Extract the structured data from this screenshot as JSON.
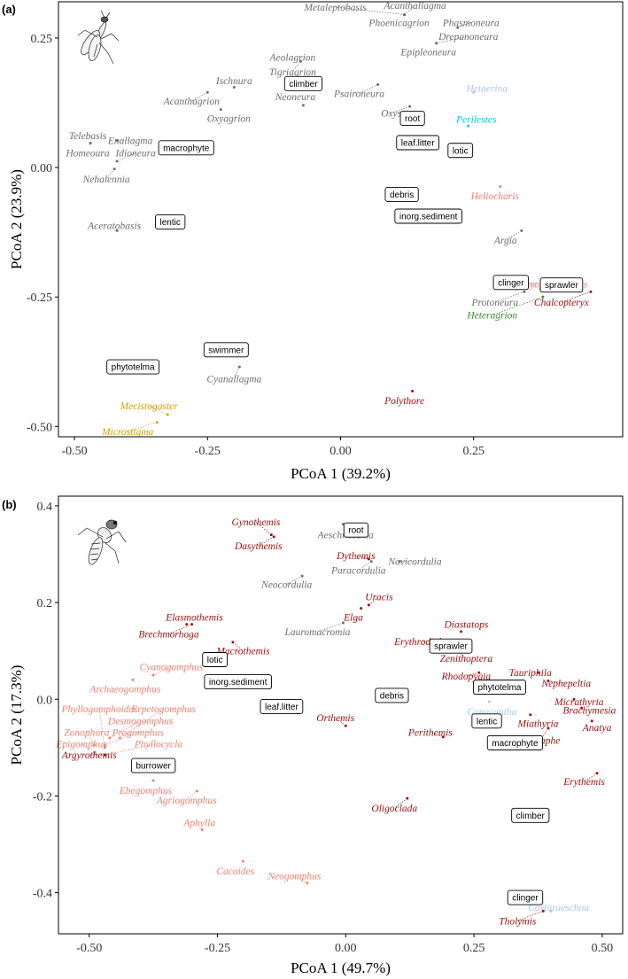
{
  "chart_data": [
    {
      "type": "scatter",
      "panel": "(a)",
      "xlabel": "PCoA 1 (39.2%)",
      "ylabel": "PCoA 2 (23.9%)",
      "xlim": [
        -0.53,
        0.53
      ],
      "ylim": [
        -0.52,
        0.32
      ],
      "xticks": [
        -0.5,
        -0.25,
        0.0,
        0.25
      ],
      "xtick_labels": [
        "-0.50",
        "-0.25",
        "0.00",
        "0.25"
      ],
      "yticks": [
        -0.5,
        -0.25,
        0.0,
        0.25
      ],
      "ytick_labels": [
        "-0.50",
        "-0.25",
        "0.00",
        "0.25"
      ],
      "taxa": [
        {
          "name": "Metaleptobasis",
          "x": 0.12,
          "y": 0.295,
          "label": [
            -0.01,
            0.31
          ],
          "color": "#6e6e6e"
        },
        {
          "name": "Acanthallagma",
          "x": 0.12,
          "y": 0.295,
          "label": [
            0.14,
            0.313
          ],
          "color": "#6e6e6e"
        },
        {
          "name": "Phasmoneura",
          "x": 0.22,
          "y": 0.27,
          "label": [
            0.245,
            0.28
          ],
          "color": "#6e6e6e"
        },
        {
          "name": "Phoenicagrion",
          "x": 0.12,
          "y": 0.295,
          "label": [
            0.11,
            0.28
          ],
          "color": "#6e6e6e"
        },
        {
          "name": "Drepanoneura",
          "x": 0.18,
          "y": 0.24,
          "label": [
            0.24,
            0.253
          ],
          "color": "#6e6e6e"
        },
        {
          "name": "Epipleoneura",
          "x": 0.18,
          "y": 0.24,
          "label": [
            0.165,
            0.223
          ],
          "color": "#6e6e6e"
        },
        {
          "name": "Aeolagrion",
          "x": -0.075,
          "y": 0.205,
          "label": [
            -0.09,
            0.213
          ],
          "color": "#6e6e6e"
        },
        {
          "name": "Tigriagrion",
          "x": -0.075,
          "y": 0.205,
          "label": [
            -0.09,
            0.185
          ],
          "color": "#6e6e6e"
        },
        {
          "name": "Ischnura",
          "x": -0.2,
          "y": 0.155,
          "label": [
            -0.2,
            0.168
          ],
          "color": "#6e6e6e"
        },
        {
          "name": "Acanthagrion",
          "x": -0.25,
          "y": 0.145,
          "label": [
            -0.28,
            0.128
          ],
          "color": "#6e6e6e"
        },
        {
          "name": "Oxyagrion",
          "x": -0.225,
          "y": 0.112,
          "label": [
            -0.21,
            0.095
          ],
          "color": "#6e6e6e"
        },
        {
          "name": "Neoneura",
          "x": -0.07,
          "y": 0.12,
          "label": [
            -0.085,
            0.137
          ],
          "color": "#6e6e6e"
        },
        {
          "name": "Psaironeura",
          "x": 0.07,
          "y": 0.16,
          "label": [
            0.035,
            0.143
          ],
          "color": "#6e6e6e"
        },
        {
          "name": "Oxys",
          "x": 0.13,
          "y": 0.118,
          "label": [
            0.095,
            0.105
          ],
          "color": "#6e6e6e"
        },
        {
          "name": "Hetaerina",
          "x": 0.25,
          "y": 0.145,
          "label": [
            0.275,
            0.153
          ],
          "color": "#aac8ea"
        },
        {
          "name": "Perilestes",
          "x": 0.24,
          "y": 0.08,
          "label": [
            0.255,
            0.093
          ],
          "color": "#00c8e0"
        },
        {
          "name": "Telebasis",
          "x": -0.47,
          "y": 0.047,
          "label": [
            -0.475,
            0.062
          ],
          "color": "#6e6e6e"
        },
        {
          "name": "Enallagma",
          "x": -0.42,
          "y": 0.052,
          "label": [
            -0.395,
            0.052
          ],
          "color": "#6e6e6e"
        },
        {
          "name": "Homeoura",
          "x": -0.47,
          "y": 0.047,
          "label": [
            -0.475,
            0.028
          ],
          "color": "#6e6e6e"
        },
        {
          "name": "Idioneura",
          "x": -0.42,
          "y": 0.012,
          "label": [
            -0.385,
            0.028
          ],
          "color": "#6e6e6e"
        },
        {
          "name": "Nehalennia",
          "x": -0.425,
          "y": -0.003,
          "label": [
            -0.44,
            -0.022
          ],
          "color": "#6e6e6e"
        },
        {
          "name": "Heliocharis",
          "x": 0.3,
          "y": -0.037,
          "label": [
            0.29,
            -0.055
          ],
          "color": "#f08070"
        },
        {
          "name": "Aceratobasis",
          "x": -0.42,
          "y": -0.122,
          "label": [
            -0.425,
            -0.112
          ],
          "color": "#6e6e6e"
        },
        {
          "name": "Argia",
          "x": 0.34,
          "y": -0.122,
          "label": [
            0.31,
            -0.14
          ],
          "color": "#6e6e6e"
        },
        {
          "name": "Mnesarete",
          "x": 0.33,
          "y": -0.235,
          "label": [
            0.33,
            -0.225
          ],
          "color": "#aac8ea"
        },
        {
          "name": "Bryoplatycterias",
          "x": 0.4,
          "y": -0.225,
          "label": [
            0.4,
            -0.225
          ],
          "color": "#f08070"
        },
        {
          "name": "Protoneura",
          "x": 0.345,
          "y": -0.24,
          "label": [
            0.29,
            -0.26
          ],
          "color": "#6e6e6e"
        },
        {
          "name": "Chalcopteryx",
          "x": 0.47,
          "y": -0.24,
          "label": [
            0.415,
            -0.26
          ],
          "color": "#a01010"
        },
        {
          "name": "Heteragrion",
          "x": 0.38,
          "y": -0.25,
          "label": [
            0.285,
            -0.285
          ],
          "color": "#3a8a2a"
        },
        {
          "name": "Cyanallagma",
          "x": -0.19,
          "y": -0.385,
          "label": [
            -0.2,
            -0.408
          ],
          "color": "#6e6e6e"
        },
        {
          "name": "Polythore",
          "x": 0.135,
          "y": -0.432,
          "label": [
            0.12,
            -0.45
          ],
          "color": "#a01010"
        },
        {
          "name": "Mecistogaster",
          "x": -0.325,
          "y": -0.477,
          "label": [
            -0.36,
            -0.46
          ],
          "color": "#d4a000"
        },
        {
          "name": "Microstigma",
          "x": -0.345,
          "y": -0.492,
          "label": [
            -0.4,
            -0.51
          ],
          "color": "#d4a000"
        }
      ],
      "habitats": [
        {
          "label": "climber",
          "x": -0.07,
          "y": 0.162
        },
        {
          "label": "root",
          "x": 0.135,
          "y": 0.095
        },
        {
          "label": "leaf.litter",
          "x": 0.145,
          "y": 0.048
        },
        {
          "label": "lotic",
          "x": 0.225,
          "y": 0.033
        },
        {
          "label": "macrophyte",
          "x": -0.29,
          "y": 0.038
        },
        {
          "label": "debris",
          "x": 0.115,
          "y": -0.052
        },
        {
          "label": "inorg.sediment",
          "x": 0.165,
          "y": -0.094
        },
        {
          "label": "lentic",
          "x": -0.32,
          "y": -0.105
        },
        {
          "label": "clinger",
          "x": 0.32,
          "y": -0.222
        },
        {
          "label": "sprawler",
          "x": 0.415,
          "y": -0.227
        },
        {
          "label": "swimmer",
          "x": -0.215,
          "y": -0.352
        },
        {
          "label": "phytotelma",
          "x": -0.39,
          "y": -0.385
        }
      ]
    },
    {
      "type": "scatter",
      "panel": "(b)",
      "xlabel": "PCoA 1 (49.7%)",
      "ylabel": "PCoA 2 (17.3%)",
      "xlim": [
        -0.56,
        0.54
      ],
      "ylim": [
        -0.485,
        0.42
      ],
      "xticks": [
        -0.5,
        -0.25,
        0.0,
        0.25,
        0.5
      ],
      "xtick_labels": [
        "-0.50",
        "-0.25",
        "0.00",
        "0.25",
        "0.50"
      ],
      "yticks": [
        -0.4,
        -0.2,
        0.0,
        0.2,
        0.4
      ],
      "ytick_labels": [
        "-0.4",
        "-0.2",
        "0.0",
        "0.2",
        "0.4"
      ],
      "taxa": [
        {
          "name": "Gynothemis",
          "x": -0.145,
          "y": 0.34,
          "label": [
            -0.175,
            0.367
          ],
          "color": "#a01010"
        },
        {
          "name": "Dasythemis",
          "x": -0.14,
          "y": 0.336,
          "label": [
            -0.17,
            0.317
          ],
          "color": "#a01010"
        },
        {
          "name": "Aeschnosoma",
          "x": -0.005,
          "y": 0.362,
          "label": [
            0.0,
            0.34
          ],
          "color": "#6e6e6e"
        },
        {
          "name": "Dythemis",
          "x": 0.045,
          "y": 0.29,
          "label": [
            0.02,
            0.297
          ],
          "color": "#a01010"
        },
        {
          "name": "Navicordulia",
          "x": 0.105,
          "y": 0.285,
          "label": [
            0.135,
            0.285
          ],
          "color": "#6e6e6e"
        },
        {
          "name": "Paracordulia",
          "x": 0.05,
          "y": 0.285,
          "label": [
            0.025,
            0.267
          ],
          "color": "#6e6e6e"
        },
        {
          "name": "Neocordulia",
          "x": -0.085,
          "y": 0.255,
          "label": [
            -0.115,
            0.238
          ],
          "color": "#6e6e6e"
        },
        {
          "name": "Uracis",
          "x": 0.045,
          "y": 0.195,
          "label": [
            0.065,
            0.212
          ],
          "color": "#a01010"
        },
        {
          "name": "Elga",
          "x": 0.03,
          "y": 0.188,
          "label": [
            0.015,
            0.17
          ],
          "color": "#a01010"
        },
        {
          "name": "Lauromacromia",
          "x": -0.005,
          "y": 0.158,
          "label": [
            -0.055,
            0.14
          ],
          "color": "#6e6e6e"
        },
        {
          "name": "Elasmothemis",
          "x": -0.31,
          "y": 0.155,
          "label": [
            -0.295,
            0.17
          ],
          "color": "#a01010"
        },
        {
          "name": "Brechmorhoga",
          "x": -0.3,
          "y": 0.155,
          "label": [
            -0.345,
            0.135
          ],
          "color": "#a01010"
        },
        {
          "name": "Macrothemis",
          "x": -0.22,
          "y": 0.118,
          "label": [
            -0.2,
            0.1
          ],
          "color": "#a01010"
        },
        {
          "name": "Diastatops",
          "x": 0.225,
          "y": 0.14,
          "label": [
            0.235,
            0.155
          ],
          "color": "#a01010"
        },
        {
          "name": "Erythrodiplax",
          "x": 0.2,
          "y": 0.12,
          "label": [
            0.15,
            0.12
          ],
          "color": "#a01010"
        },
        {
          "name": "Zenithoptera",
          "x": 0.215,
          "y": 0.1,
          "label": [
            0.235,
            0.085
          ],
          "color": "#a01010"
        },
        {
          "name": "Rhodopygia",
          "x": 0.26,
          "y": 0.055,
          "label": [
            0.235,
            0.048
          ],
          "color": "#a01010"
        },
        {
          "name": "Tauriphila",
          "x": 0.375,
          "y": 0.055,
          "label": [
            0.36,
            0.055
          ],
          "color": "#a01010"
        },
        {
          "name": "Nephepeltia",
          "x": 0.395,
          "y": 0.038,
          "label": [
            0.43,
            0.033
          ],
          "color": "#a01010"
        },
        {
          "name": "Micrathyria",
          "x": 0.445,
          "y": 0.0,
          "label": [
            0.455,
            -0.005
          ],
          "color": "#a01010"
        },
        {
          "name": "Brachymesia",
          "x": 0.46,
          "y": -0.018,
          "label": [
            0.475,
            -0.022
          ],
          "color": "#a01010"
        },
        {
          "name": "Miathyria",
          "x": 0.36,
          "y": -0.032,
          "label": [
            0.375,
            -0.05
          ],
          "color": "#a01010"
        },
        {
          "name": "Anatya",
          "x": 0.48,
          "y": -0.045,
          "label": [
            0.49,
            -0.058
          ],
          "color": "#a01010"
        },
        {
          "name": "Gynacantha",
          "x": 0.28,
          "y": -0.005,
          "label": [
            0.285,
            -0.025
          ],
          "color": "#aac8ea"
        },
        {
          "name": "Idiataphe",
          "x": 0.395,
          "y": -0.06,
          "label": [
            0.38,
            -0.085
          ],
          "color": "#a01010"
        },
        {
          "name": "Erythemis",
          "x": 0.49,
          "y": -0.153,
          "label": [
            0.465,
            -0.17
          ],
          "color": "#a01010"
        },
        {
          "name": "Orthemis",
          "x": 0.0,
          "y": -0.055,
          "label": [
            -0.02,
            -0.038
          ],
          "color": "#a01010"
        },
        {
          "name": "Perithemis",
          "x": 0.19,
          "y": -0.078,
          "label": [
            0.165,
            -0.068
          ],
          "color": "#a01010"
        },
        {
          "name": "Oligoclada",
          "x": 0.12,
          "y": -0.205,
          "label": [
            0.095,
            -0.225
          ],
          "color": "#a01010"
        },
        {
          "name": "Cyanogomphus",
          "x": -0.375,
          "y": 0.05,
          "label": [
            -0.34,
            0.067
          ],
          "color": "#f08070"
        },
        {
          "name": "Archaeogomphus",
          "x": -0.415,
          "y": 0.04,
          "label": [
            -0.43,
            0.022
          ],
          "color": "#f08070"
        },
        {
          "name": "Phyllogomphoides",
          "x": -0.47,
          "y": -0.1,
          "label": [
            -0.48,
            -0.02
          ],
          "color": "#f08070"
        },
        {
          "name": "Erpetogomphus",
          "x": -0.44,
          "y": -0.08,
          "label": [
            -0.355,
            -0.02
          ],
          "color": "#f08070"
        },
        {
          "name": "Desmogomphus",
          "x": -0.46,
          "y": -0.08,
          "label": [
            -0.4,
            -0.044
          ],
          "color": "#f08070"
        },
        {
          "name": "Zonophora",
          "x": -0.49,
          "y": -0.095,
          "label": [
            -0.505,
            -0.068
          ],
          "color": "#f08070"
        },
        {
          "name": "Progomphus",
          "x": -0.47,
          "y": -0.095,
          "label": [
            -0.405,
            -0.068
          ],
          "color": "#f08070"
        },
        {
          "name": "Epigomphus",
          "x": -0.49,
          "y": -0.11,
          "label": [
            -0.515,
            -0.092
          ],
          "color": "#f08070"
        },
        {
          "name": "Phyllocycla",
          "x": -0.47,
          "y": -0.115,
          "label": [
            -0.365,
            -0.092
          ],
          "color": "#f08070"
        },
        {
          "name": "Argyrothemis",
          "x": -0.47,
          "y": -0.115,
          "label": [
            -0.5,
            -0.115
          ],
          "color": "#a01010"
        },
        {
          "name": "Ebegomphus",
          "x": -0.375,
          "y": -0.168,
          "label": [
            -0.39,
            -0.188
          ],
          "color": "#f08070"
        },
        {
          "name": "Agriogomphus",
          "x": -0.29,
          "y": -0.19,
          "label": [
            -0.31,
            -0.208
          ],
          "color": "#f08070"
        },
        {
          "name": "Aphylla",
          "x": -0.28,
          "y": -0.27,
          "label": [
            -0.285,
            -0.255
          ],
          "color": "#f08070"
        },
        {
          "name": "Cacoides",
          "x": -0.2,
          "y": -0.335,
          "label": [
            -0.215,
            -0.355
          ],
          "color": "#f08070"
        },
        {
          "name": "Neogomphus",
          "x": -0.075,
          "y": -0.38,
          "label": [
            -0.1,
            -0.365
          ],
          "color": "#f08070"
        },
        {
          "name": "Castoraeschna",
          "x": 0.4,
          "y": -0.438,
          "label": [
            0.415,
            -0.43
          ],
          "color": "#aac8ea"
        },
        {
          "name": "Tholymis",
          "x": 0.385,
          "y": -0.438,
          "label": [
            0.335,
            -0.458
          ],
          "color": "#a01010"
        }
      ],
      "habitats": [
        {
          "label": "root",
          "x": 0.02,
          "y": 0.35
        },
        {
          "label": "sprawler",
          "x": 0.205,
          "y": 0.11
        },
        {
          "label": "lotic",
          "x": -0.255,
          "y": 0.082
        },
        {
          "label": "inorg.sediment",
          "x": -0.21,
          "y": 0.036
        },
        {
          "label": "phytotelma",
          "x": 0.3,
          "y": 0.025
        },
        {
          "label": "debris",
          "x": 0.09,
          "y": 0.008
        },
        {
          "label": "leaf.litter",
          "x": -0.125,
          "y": -0.015
        },
        {
          "label": "lentic",
          "x": 0.275,
          "y": -0.045
        },
        {
          "label": "macrophyte",
          "x": 0.33,
          "y": -0.09
        },
        {
          "label": "burrower",
          "x": -0.375,
          "y": -0.137
        },
        {
          "label": "climber",
          "x": 0.36,
          "y": -0.24
        },
        {
          "label": "clinger",
          "x": 0.35,
          "y": -0.41
        }
      ]
    }
  ]
}
